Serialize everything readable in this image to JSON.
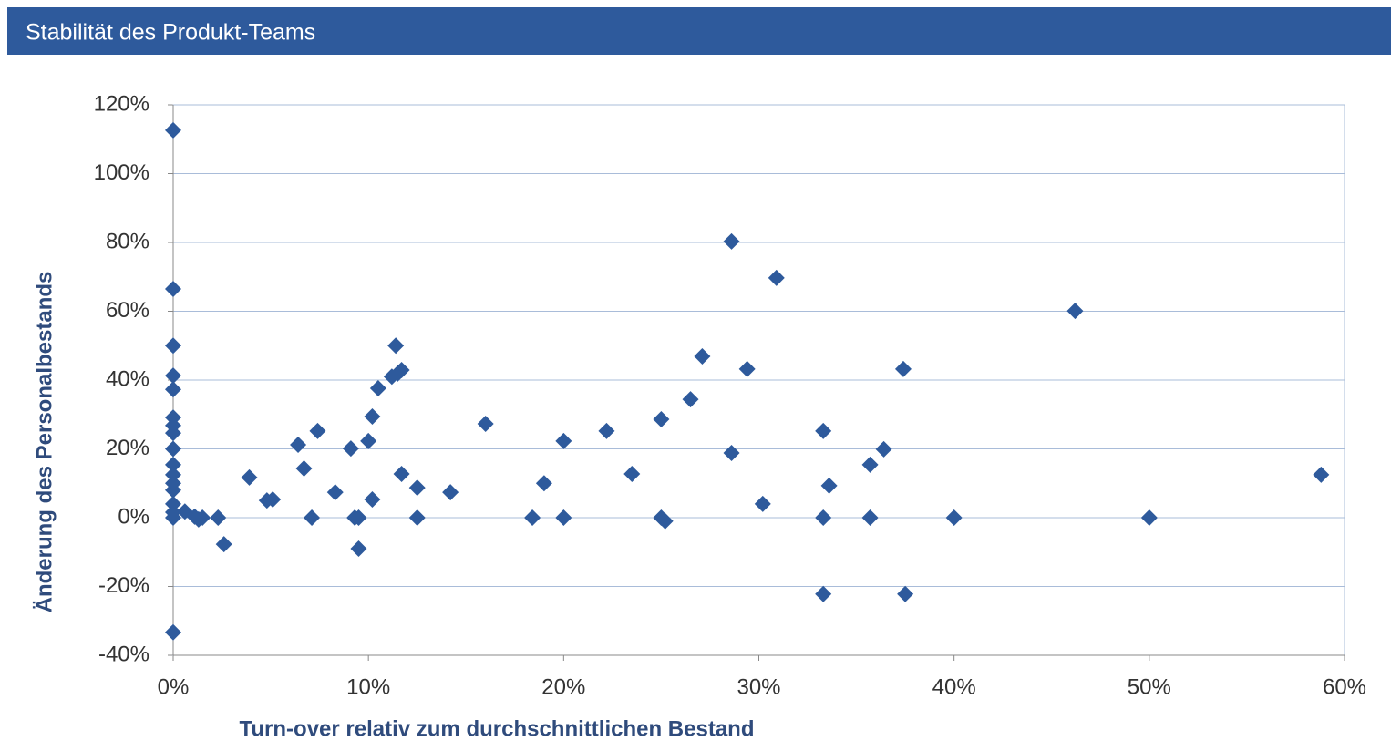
{
  "chart_data": {
    "type": "scatter",
    "title": "Stabilität des Produkt-Teams",
    "x_label": "Turn-over relativ zum durchschnittlichen Bestand",
    "y_label": "Änderung des Personalbestands",
    "color": "#2e5a9c",
    "grid": true,
    "xlim": [
      0,
      60
    ],
    "ylim": [
      -40,
      120
    ],
    "xticks": [
      {
        "value": 0,
        "label": "0%"
      },
      {
        "value": 10,
        "label": "10%"
      },
      {
        "value": 20,
        "label": "20%"
      },
      {
        "value": 30,
        "label": "30%"
      },
      {
        "value": 40,
        "label": "40%"
      },
      {
        "value": 50,
        "label": "50%"
      },
      {
        "value": 60,
        "label": "60%"
      }
    ],
    "yticks": [
      {
        "value": -40,
        "label": "-40%"
      },
      {
        "value": -20,
        "label": "-20%"
      },
      {
        "value": 0,
        "label": "0%"
      },
      {
        "value": 20,
        "label": "20%"
      },
      {
        "value": 40,
        "label": "40%"
      },
      {
        "value": 60,
        "label": "60%"
      },
      {
        "value": 80,
        "label": "80%"
      },
      {
        "value": 100,
        "label": "100%"
      },
      {
        "value": 120,
        "label": "120%"
      }
    ],
    "x": [
      0,
      0,
      0,
      0,
      0,
      0,
      0,
      0,
      0,
      0,
      0,
      0,
      0,
      0,
      0,
      0,
      0,
      0.6,
      1.1,
      1.3,
      1.5,
      2.3,
      2.6,
      3.9,
      4.8,
      5.1,
      6.4,
      6.7,
      7.1,
      7.4,
      8.3,
      9.1,
      9.3,
      9.5,
      9.5,
      10,
      10.2,
      10.2,
      10.5,
      11.2,
      11.4,
      11.5,
      11.7,
      11.7,
      12.5,
      12.5,
      14.2,
      16,
      18.4,
      19,
      20,
      20,
      22.2,
      23.5,
      25,
      25,
      25.2,
      26.5,
      27.1,
      28.6,
      28.6,
      29.4,
      30.2,
      30.9,
      33.3,
      33.3,
      33.3,
      33.6,
      35.7,
      35.7,
      36.4,
      37.4,
      37.5,
      40,
      46.2,
      50,
      58.8
    ],
    "values": [
      112.6,
      66.5,
      50,
      41.3,
      37.3,
      29.1,
      26.8,
      24.6,
      20,
      15.4,
      12.5,
      10,
      8,
      4,
      1.6,
      0,
      -33.3,
      1.8,
      0.3,
      -0.5,
      0,
      0,
      -7.7,
      11.7,
      5,
      5.3,
      21.2,
      14.3,
      0,
      25.2,
      7.4,
      20.1,
      0,
      0,
      -9,
      22.3,
      29.4,
      5.3,
      37.6,
      41,
      50,
      41.9,
      42.9,
      12.7,
      8.7,
      0,
      7.4,
      27.3,
      0,
      10,
      22.3,
      0,
      25.2,
      12.7,
      28.6,
      0,
      -1,
      34.4,
      46.9,
      80.3,
      18.8,
      43.2,
      4,
      69.7,
      25.2,
      0,
      -22.2,
      9.3,
      15.4,
      0,
      19.9,
      43.2,
      -22.2,
      0,
      60.1,
      0,
      12.5
    ]
  }
}
